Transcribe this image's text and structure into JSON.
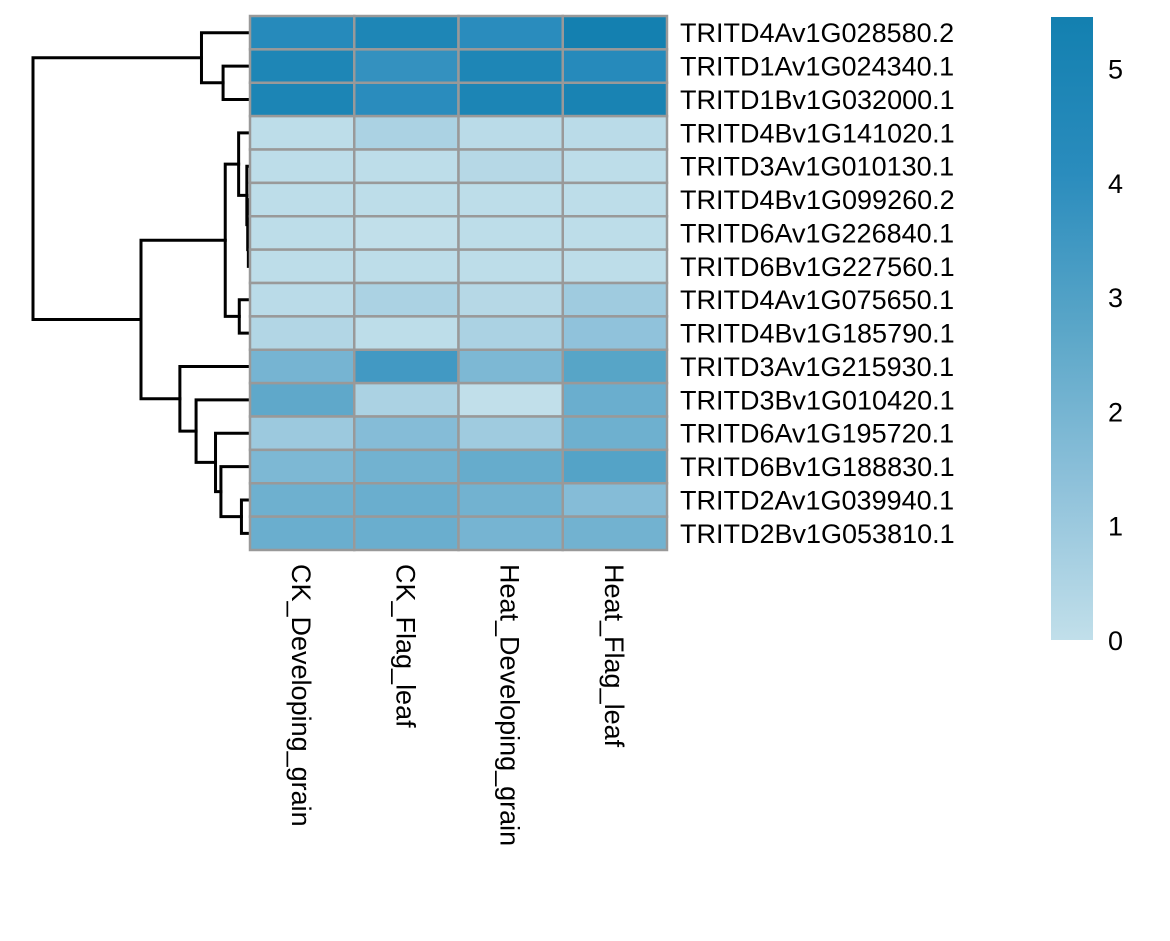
{
  "chart_data": {
    "type": "heatmap",
    "title": "",
    "xlabel": "",
    "ylabel": "",
    "rows": [
      "TRITD4Av1G028580.2",
      "TRITD1Av1G024340.1",
      "TRITD1Bv1G032000.1",
      "TRITD4Bv1G141020.1",
      "TRITD3Av1G010130.1",
      "TRITD4Bv1G099260.2",
      "TRITD6Av1G226840.1",
      "TRITD6Bv1G227560.1",
      "TRITD4Av1G075650.1",
      "TRITD4Bv1G185790.1",
      "TRITD3Av1G215930.1",
      "TRITD3Bv1G010420.1",
      "TRITD6Av1G195720.1",
      "TRITD6Bv1G188830.1",
      "TRITD2Av1G039940.1",
      "TRITD2Bv1G053810.1"
    ],
    "columns": [
      "CK_Developing_grain",
      "CK_Flag_leaf",
      "Heat_Developing_grain",
      "Heat_Flag_leaf"
    ],
    "values": [
      [
        4.3,
        4.8,
        4.1,
        5.4
      ],
      [
        4.8,
        3.8,
        4.8,
        4.3
      ],
      [
        4.9,
        4.1,
        4.9,
        5.1
      ],
      [
        0.1,
        0.6,
        0.2,
        0.2
      ],
      [
        0.1,
        0.1,
        0.3,
        0.1
      ],
      [
        0.1,
        0.1,
        0.1,
        0.1
      ],
      [
        0.1,
        0.0,
        0.1,
        0.1
      ],
      [
        0.1,
        0.1,
        0.1,
        0.1
      ],
      [
        0.2,
        0.6,
        0.3,
        0.9
      ],
      [
        0.4,
        0.1,
        0.6,
        1.3
      ],
      [
        2.0,
        3.4,
        1.8,
        2.8
      ],
      [
        2.6,
        0.6,
        0.0,
        2.3
      ],
      [
        1.0,
        1.6,
        0.9,
        2.2
      ],
      [
        1.8,
        2.1,
        2.4,
        2.9
      ],
      [
        2.2,
        2.3,
        2.1,
        1.6
      ],
      [
        2.3,
        2.3,
        2.0,
        2.1
      ]
    ],
    "color_scale": {
      "min": 0,
      "max": 5.45,
      "colors": [
        "#c1dfea",
        "#8ec1da",
        "#5aa6c8",
        "#2a8cbd",
        "#1380b0"
      ],
      "ticks": [
        0,
        1,
        2,
        3,
        4,
        5
      ],
      "tick_labels": [
        "0",
        "1",
        "2",
        "3",
        "4",
        "5"
      ]
    },
    "cell_border_color": "#999999",
    "row_dendrogram": {
      "h": 10.0,
      "children": [
        {
          "h": 2.2,
          "children": [
            {
              "leaf": 0
            },
            {
              "h": 1.2,
              "children": [
                {
                  "leaf": 1
                },
                {
                  "leaf": 2
                }
              ]
            }
          ]
        },
        {
          "h": 5.0,
          "children": [
            {
              "h": 1.1,
              "children": [
                {
                  "h": 0.48,
                  "children": [
                    {
                      "leaf": 3
                    },
                    {
                      "h": 0.1,
                      "children": [
                        {
                          "leaf": 4
                        },
                        {
                          "h": 0.06,
                          "children": [
                            {
                              "leaf": 5
                            },
                            {
                              "h": 0.03,
                              "children": [
                                {
                                  "leaf": 6
                                },
                                {
                                  "leaf": 7
                                }
                              ]
                            }
                          ]
                        }
                      ]
                    }
                  ]
                },
                {
                  "h": 0.45,
                  "children": [
                    {
                      "leaf": 8
                    },
                    {
                      "leaf": 9
                    }
                  ]
                }
              ]
            },
            {
              "h": 3.2,
              "children": [
                {
                  "leaf": 10
                },
                {
                  "h": 2.45,
                  "children": [
                    {
                      "leaf": 11
                    },
                    {
                      "h": 1.55,
                      "children": [
                        {
                          "leaf": 12
                        },
                        {
                          "h": 1.3,
                          "children": [
                            {
                              "leaf": 13
                            },
                            {
                              "h": 0.35,
                              "children": [
                                {
                                  "leaf": 14
                                },
                                {
                                  "leaf": 15
                                }
                              ]
                            }
                          ]
                        }
                      ]
                    }
                  ]
                }
              ]
            }
          ]
        }
      ]
    }
  }
}
